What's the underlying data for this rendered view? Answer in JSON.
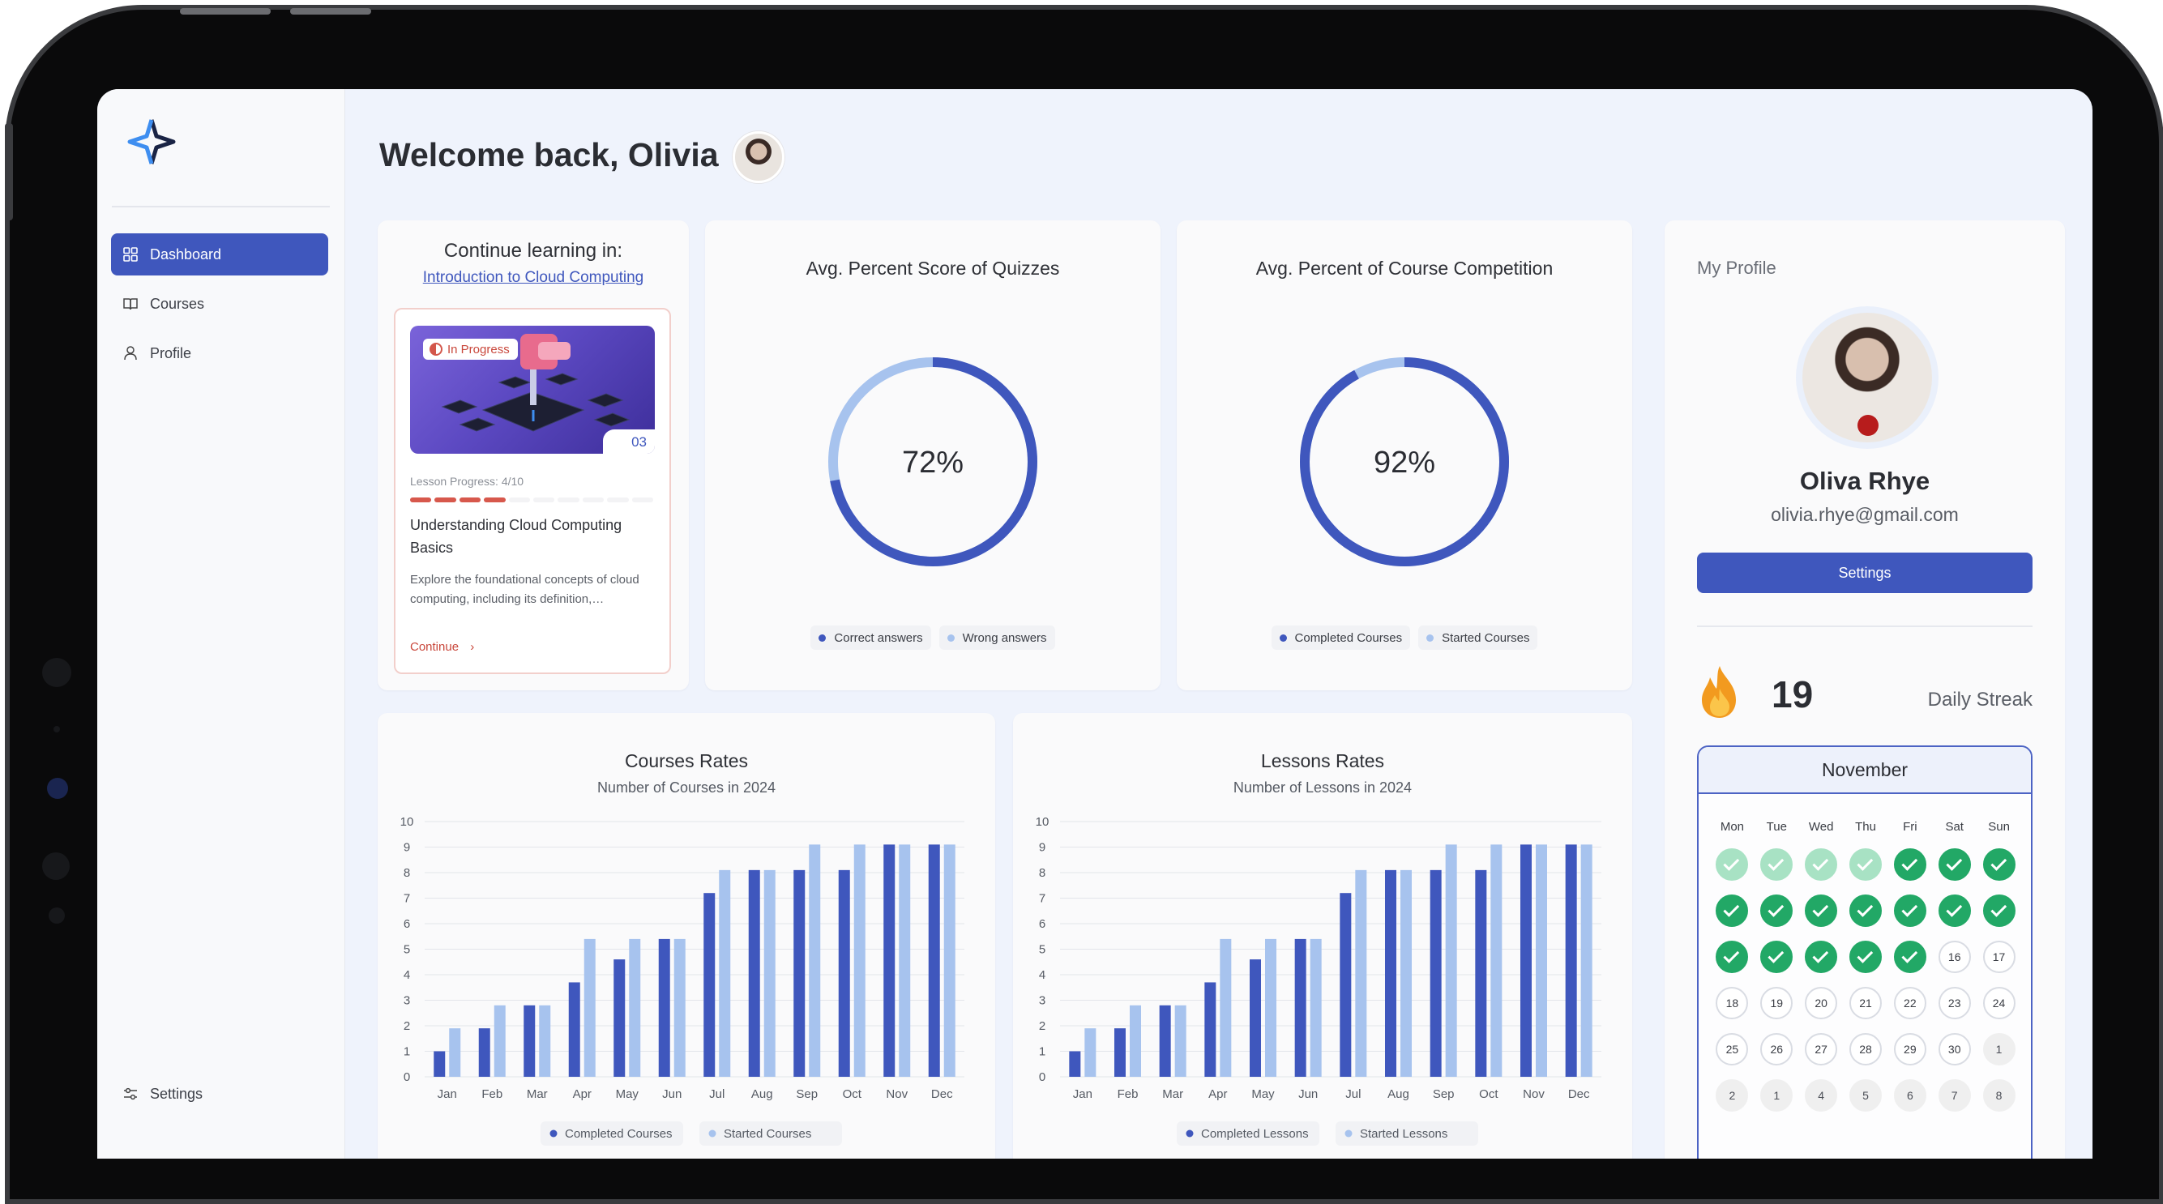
{
  "sidebar": {
    "nav": [
      {
        "label": "Dashboard",
        "icon": "grid-icon",
        "active": true
      },
      {
        "label": "Courses",
        "icon": "book-icon",
        "active": false
      },
      {
        "label": "Profile",
        "icon": "user-icon",
        "active": false
      }
    ],
    "settings_label": "Settings"
  },
  "header": {
    "welcome": "Welcome back, Olivia"
  },
  "continue_card": {
    "title": "Continue learning in:",
    "course_link": "Introduction to Cloud Computing",
    "badge": "In Progress",
    "lesson_number": "03",
    "progress_text": "Lesson Progress: 4/10",
    "progress": {
      "done": 4,
      "total": 10
    },
    "lesson_title": "Understanding Cloud Computing Basics",
    "lesson_desc": "Explore the foundational concepts of cloud computing, including its definition,…",
    "continue_label": "Continue"
  },
  "quiz_card": {
    "title": "Avg. Percent Score of Quizzes",
    "value_label": "72%",
    "value": 72,
    "legend": [
      "Correct answers",
      "Wrong answers"
    ]
  },
  "completion_card": {
    "title": "Avg. Percent of Course Competition",
    "value_label": "92%",
    "value": 92,
    "legend": [
      "Completed Courses",
      "Started Courses"
    ]
  },
  "profile": {
    "section_label": "My Profile",
    "name": "Oliva Rhye",
    "email": "olivia.rhye@gmail.com",
    "settings_button": "Settings",
    "streak_count": "19",
    "streak_label": "Daily Streak"
  },
  "calendar": {
    "month": "November",
    "weekdays": [
      "Mon",
      "Tue",
      "Wed",
      "Thu",
      "Fri",
      "Sat",
      "Sun"
    ],
    "days": [
      {
        "label": "",
        "state": "partial"
      },
      {
        "label": "",
        "state": "partial"
      },
      {
        "label": "",
        "state": "partial"
      },
      {
        "label": "",
        "state": "partial"
      },
      {
        "label": "",
        "state": "done"
      },
      {
        "label": "",
        "state": "done"
      },
      {
        "label": "",
        "state": "done"
      },
      {
        "label": "",
        "state": "done"
      },
      {
        "label": "",
        "state": "done"
      },
      {
        "label": "",
        "state": "done"
      },
      {
        "label": "",
        "state": "done"
      },
      {
        "label": "",
        "state": "done"
      },
      {
        "label": "",
        "state": "done"
      },
      {
        "label": "",
        "state": "done"
      },
      {
        "label": "",
        "state": "done"
      },
      {
        "label": "",
        "state": "done"
      },
      {
        "label": "",
        "state": "done"
      },
      {
        "label": "",
        "state": "done"
      },
      {
        "label": "",
        "state": "done"
      },
      {
        "label": "16",
        "state": "empty"
      },
      {
        "label": "17",
        "state": "empty"
      },
      {
        "label": "18",
        "state": "empty"
      },
      {
        "label": "19",
        "state": "empty"
      },
      {
        "label": "20",
        "state": "empty"
      },
      {
        "label": "21",
        "state": "empty"
      },
      {
        "label": "22",
        "state": "empty"
      },
      {
        "label": "23",
        "state": "empty"
      },
      {
        "label": "24",
        "state": "empty"
      },
      {
        "label": "25",
        "state": "empty"
      },
      {
        "label": "26",
        "state": "empty"
      },
      {
        "label": "27",
        "state": "empty"
      },
      {
        "label": "28",
        "state": "empty"
      },
      {
        "label": "29",
        "state": "empty"
      },
      {
        "label": "30",
        "state": "empty"
      },
      {
        "label": "1",
        "state": "next"
      },
      {
        "label": "2",
        "state": "next"
      },
      {
        "label": "1",
        "state": "next"
      },
      {
        "label": "4",
        "state": "next"
      },
      {
        "label": "5",
        "state": "next"
      },
      {
        "label": "6",
        "state": "next"
      },
      {
        "label": "7",
        "state": "next"
      },
      {
        "label": "8",
        "state": "next"
      }
    ]
  },
  "colors": {
    "primary": "#3f57bd",
    "secondary": "#a7c3ee",
    "streak_done": "#22a866",
    "streak_partial": "#a8e2c4",
    "accent_red": "#c9473b"
  },
  "chart_data": [
    {
      "type": "bar",
      "title": "Courses Rates",
      "subtitle": "Number of Courses in 2024",
      "categories": [
        "Jan",
        "Feb",
        "Mar",
        "Apr",
        "May",
        "Jun",
        "Jul",
        "Aug",
        "Sep",
        "Oct",
        "Nov",
        "Dec"
      ],
      "series": [
        {
          "name": "Completed Courses",
          "values": [
            1,
            1.9,
            2.8,
            3.7,
            4.6,
            5.4,
            7.2,
            8.1,
            8.1,
            8.1,
            9.1,
            9.1
          ]
        },
        {
          "name": "Started Courses",
          "values": [
            1.9,
            2.8,
            2.8,
            5.4,
            5.4,
            5.4,
            8.1,
            8.1,
            9.1,
            9.1,
            9.1,
            9.1
          ]
        }
      ],
      "ylim": [
        0,
        10
      ],
      "yticks": [
        "0",
        "1",
        "2",
        "3",
        "4",
        "5",
        "6",
        "7",
        "8",
        "9",
        "10"
      ],
      "grid": true,
      "legend": "bottom"
    },
    {
      "type": "bar",
      "title": "Lessons Rates",
      "subtitle": "Number of Lessons in 2024",
      "categories": [
        "Jan",
        "Feb",
        "Mar",
        "Apr",
        "May",
        "Jun",
        "Jul",
        "Aug",
        "Sep",
        "Oct",
        "Nov",
        "Dec"
      ],
      "series": [
        {
          "name": "Completed Lessons",
          "values": [
            1,
            1.9,
            2.8,
            3.7,
            4.6,
            5.4,
            7.2,
            8.1,
            8.1,
            8.1,
            9.1,
            9.1
          ]
        },
        {
          "name": "Started Lessons",
          "values": [
            1.9,
            2.8,
            2.8,
            5.4,
            5.4,
            5.4,
            8.1,
            8.1,
            9.1,
            9.1,
            9.1,
            9.1
          ]
        }
      ],
      "ylim": [
        0,
        10
      ],
      "yticks": [
        "0",
        "1",
        "2",
        "3",
        "4",
        "5",
        "6",
        "7",
        "8",
        "9",
        "10"
      ],
      "grid": true,
      "legend": "bottom"
    }
  ]
}
